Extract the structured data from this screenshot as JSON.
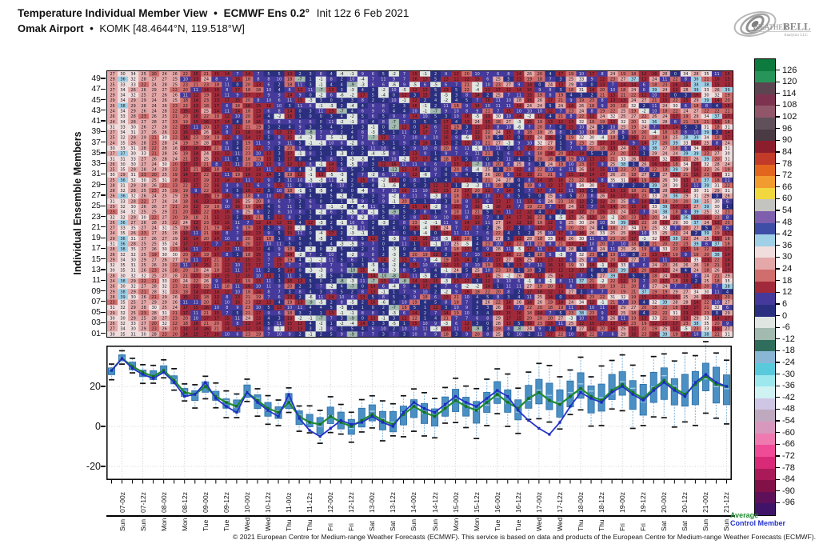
{
  "header": {
    "title_main": "Temperature Individual Member View",
    "sep": "•",
    "title_model": "ECMWF Ens 0.2°",
    "title_init": "Init 12z 6 Feb 2021",
    "station_bold": "Omak Airport",
    "station_rest": "KOMK [48.4644°N, 119.518°W]",
    "logo_text_weather": "Weather",
    "logo_text_bell": "BELL",
    "logo_sub": "Analytics LLC"
  },
  "heatmap": {
    "ylabel": "Individual Ensemble Members",
    "member_labels": [
      "49",
      "47",
      "45",
      "43",
      "41",
      "39",
      "37",
      "35",
      "33",
      "31",
      "29",
      "27",
      "25",
      "23",
      "21",
      "19",
      "17",
      "15",
      "13",
      "11",
      "09",
      "07",
      "05",
      "03",
      "01"
    ],
    "n_rows": 50,
    "n_cols": 60,
    "value_range": [
      -24,
      39
    ],
    "seed": 77
  },
  "colorbar": {
    "ticks": [
      126,
      120,
      114,
      108,
      102,
      96,
      90,
      84,
      78,
      72,
      66,
      60,
      54,
      48,
      42,
      36,
      30,
      24,
      18,
      12,
      6,
      0,
      -6,
      -12,
      -18,
      -24,
      -30,
      -36,
      -42,
      -48,
      -54,
      -60,
      -66,
      -72,
      -78,
      -84,
      -90,
      -96
    ],
    "stops": [
      {
        "v": 126,
        "c": "#0d7a3e",
        "t": "l"
      },
      {
        "v": 120,
        "c": "#27945a",
        "t": "l"
      },
      {
        "v": 114,
        "c": "#5c4450",
        "t": "l"
      },
      {
        "v": 108,
        "c": "#7d3350",
        "t": "l"
      },
      {
        "v": 102,
        "c": "#91566a",
        "t": "l"
      },
      {
        "v": 96,
        "c": "#60505a",
        "t": "l"
      },
      {
        "v": 90,
        "c": "#493a43",
        "t": "l"
      },
      {
        "v": 84,
        "c": "#8c1d2c",
        "t": "l"
      },
      {
        "v": 78,
        "c": "#c23b28",
        "t": "l"
      },
      {
        "v": 72,
        "c": "#e3661f",
        "t": "d"
      },
      {
        "v": 66,
        "c": "#f29b2e",
        "t": "d"
      },
      {
        "v": 60,
        "c": "#f2d83f",
        "t": "d"
      },
      {
        "v": 54,
        "c": "#c3c3bf",
        "t": "d"
      },
      {
        "v": 48,
        "c": "#7d5fae",
        "t": "l"
      },
      {
        "v": 42,
        "c": "#3e4da6",
        "t": "l"
      },
      {
        "v": 36,
        "c": "#9fd0e6",
        "t": "d"
      },
      {
        "v": 30,
        "c": "#f0dede",
        "t": "d"
      },
      {
        "v": 24,
        "c": "#e4a8a8",
        "t": "d"
      },
      {
        "v": 18,
        "c": "#d06d6d",
        "t": "d"
      },
      {
        "v": 12,
        "c": "#a12a3a",
        "t": "d"
      },
      {
        "v": 6,
        "c": "#453a9b",
        "t": "l"
      },
      {
        "v": 0,
        "c": "#2b2f80",
        "t": "l"
      },
      {
        "v": -6,
        "c": "#e0e6e2",
        "t": "d"
      },
      {
        "v": -12,
        "c": "#a2bab0",
        "t": "d"
      },
      {
        "v": -18,
        "c": "#2f6e5d",
        "t": "l"
      },
      {
        "v": -24,
        "c": "#8ab6d6",
        "t": "d"
      },
      {
        "v": -30,
        "c": "#59c9dc",
        "t": "d"
      },
      {
        "v": -36,
        "c": "#9ce8ee",
        "t": "d"
      },
      {
        "v": -42,
        "c": "#cff2f2",
        "t": "d"
      },
      {
        "v": -48,
        "c": "#cfc6e6",
        "t": "d"
      },
      {
        "v": -54,
        "c": "#bfa9bf",
        "t": "d"
      },
      {
        "v": -60,
        "c": "#d898bd",
        "t": "d"
      },
      {
        "v": -66,
        "c": "#ee7ab0",
        "t": "d"
      },
      {
        "v": -72,
        "c": "#f04b97",
        "t": "d"
      },
      {
        "v": -78,
        "c": "#d92a78",
        "t": "l"
      },
      {
        "v": -84,
        "c": "#ab1a58",
        "t": "l"
      },
      {
        "v": -90,
        "c": "#821148",
        "t": "l"
      },
      {
        "v": -96,
        "c": "#5e1158",
        "t": "l"
      },
      {
        "v": -102,
        "c": "#3f1468",
        "t": "l"
      }
    ]
  },
  "timeline": {
    "time_labels": [
      "07-00z",
      "07-12z",
      "08-00z",
      "08-12z",
      "09-00z",
      "09-12z",
      "10-00z",
      "10-12z",
      "11-00z",
      "11-12z",
      "12-00z",
      "12-12z",
      "13-00z",
      "13-12z",
      "14-00z",
      "14-12z",
      "15-00z",
      "15-12z",
      "16-00z",
      "16-12z",
      "17-00z",
      "17-12z",
      "18-00z",
      "18-12z",
      "19-00z",
      "19-12z",
      "20-00z",
      "20-12z",
      "21-00z",
      "21-12z"
    ],
    "day_labels": [
      "Sun",
      "Sun",
      "Mon",
      "Mon",
      "Tue",
      "Tue",
      "Wed",
      "Wed",
      "Thu",
      "Thu",
      "Fri",
      "Fri",
      "Sat",
      "Sat",
      "Sun",
      "Sun",
      "Mon",
      "Mon",
      "Tue",
      "Tue",
      "Wed",
      "Wed",
      "Thu",
      "Thu",
      "Fri",
      "Fri",
      "Sat",
      "Sat",
      "Sun",
      "Sun"
    ]
  },
  "chart_data": {
    "type": "box-whisker+line",
    "x_step_hours": 6,
    "x_start": "06-18z 6 Feb 2021",
    "yticks": [
      20,
      0,
      -20
    ],
    "ylim": [
      -27,
      40
    ],
    "grid": "dotted",
    "legend_position": "bottom-right",
    "series": [
      {
        "name": "Average",
        "color": "#1f8c2f",
        "values": [
          28,
          34,
          30,
          27,
          25,
          28,
          23,
          17,
          16,
          20,
          15,
          12,
          10,
          17,
          13,
          9,
          7,
          12,
          5,
          2,
          1,
          5,
          2,
          0,
          3,
          6,
          3,
          1,
          6,
          10,
          7,
          5,
          9,
          13,
          10,
          8,
          12,
          16,
          12,
          9,
          14,
          17,
          13,
          11,
          15,
          19,
          15,
          13,
          18,
          21,
          17,
          14,
          19,
          23,
          19,
          16,
          21,
          25,
          21,
          20
        ]
      },
      {
        "name": "Control Member",
        "color": "#2433cc",
        "values": [
          28,
          34,
          29,
          26,
          24,
          27,
          22,
          15,
          16,
          22,
          14,
          10,
          7,
          17,
          12,
          8,
          5,
          16,
          4,
          -2,
          -5,
          -1,
          3,
          1,
          2,
          5,
          2,
          0,
          7,
          12,
          9,
          7,
          11,
          15,
          12,
          10,
          14,
          18,
          15,
          8,
          3,
          -1,
          -4,
          2,
          10,
          17,
          14,
          12,
          17,
          20,
          16,
          13,
          18,
          22,
          18,
          15,
          22,
          26,
          22,
          20
        ]
      }
    ],
    "box": {
      "fill": "#4a90c4",
      "stroke": "#2a6da6",
      "median": "#a6cfe8",
      "whisker": "#8fbcdc",
      "cap": "#111111",
      "box_half_start": 1.5,
      "box_half_end": 8,
      "whisker_half_start": 3.5,
      "whisker_half_end": 16
    }
  },
  "legend": {
    "average": "Average",
    "control": "Control Member"
  },
  "footer": "© 2021 European Centre for Medium-range Weather Forecasts (ECMWF). This service is based on data and products of the European Centre for Medium-range Weather Forecasts (ECMWF)."
}
